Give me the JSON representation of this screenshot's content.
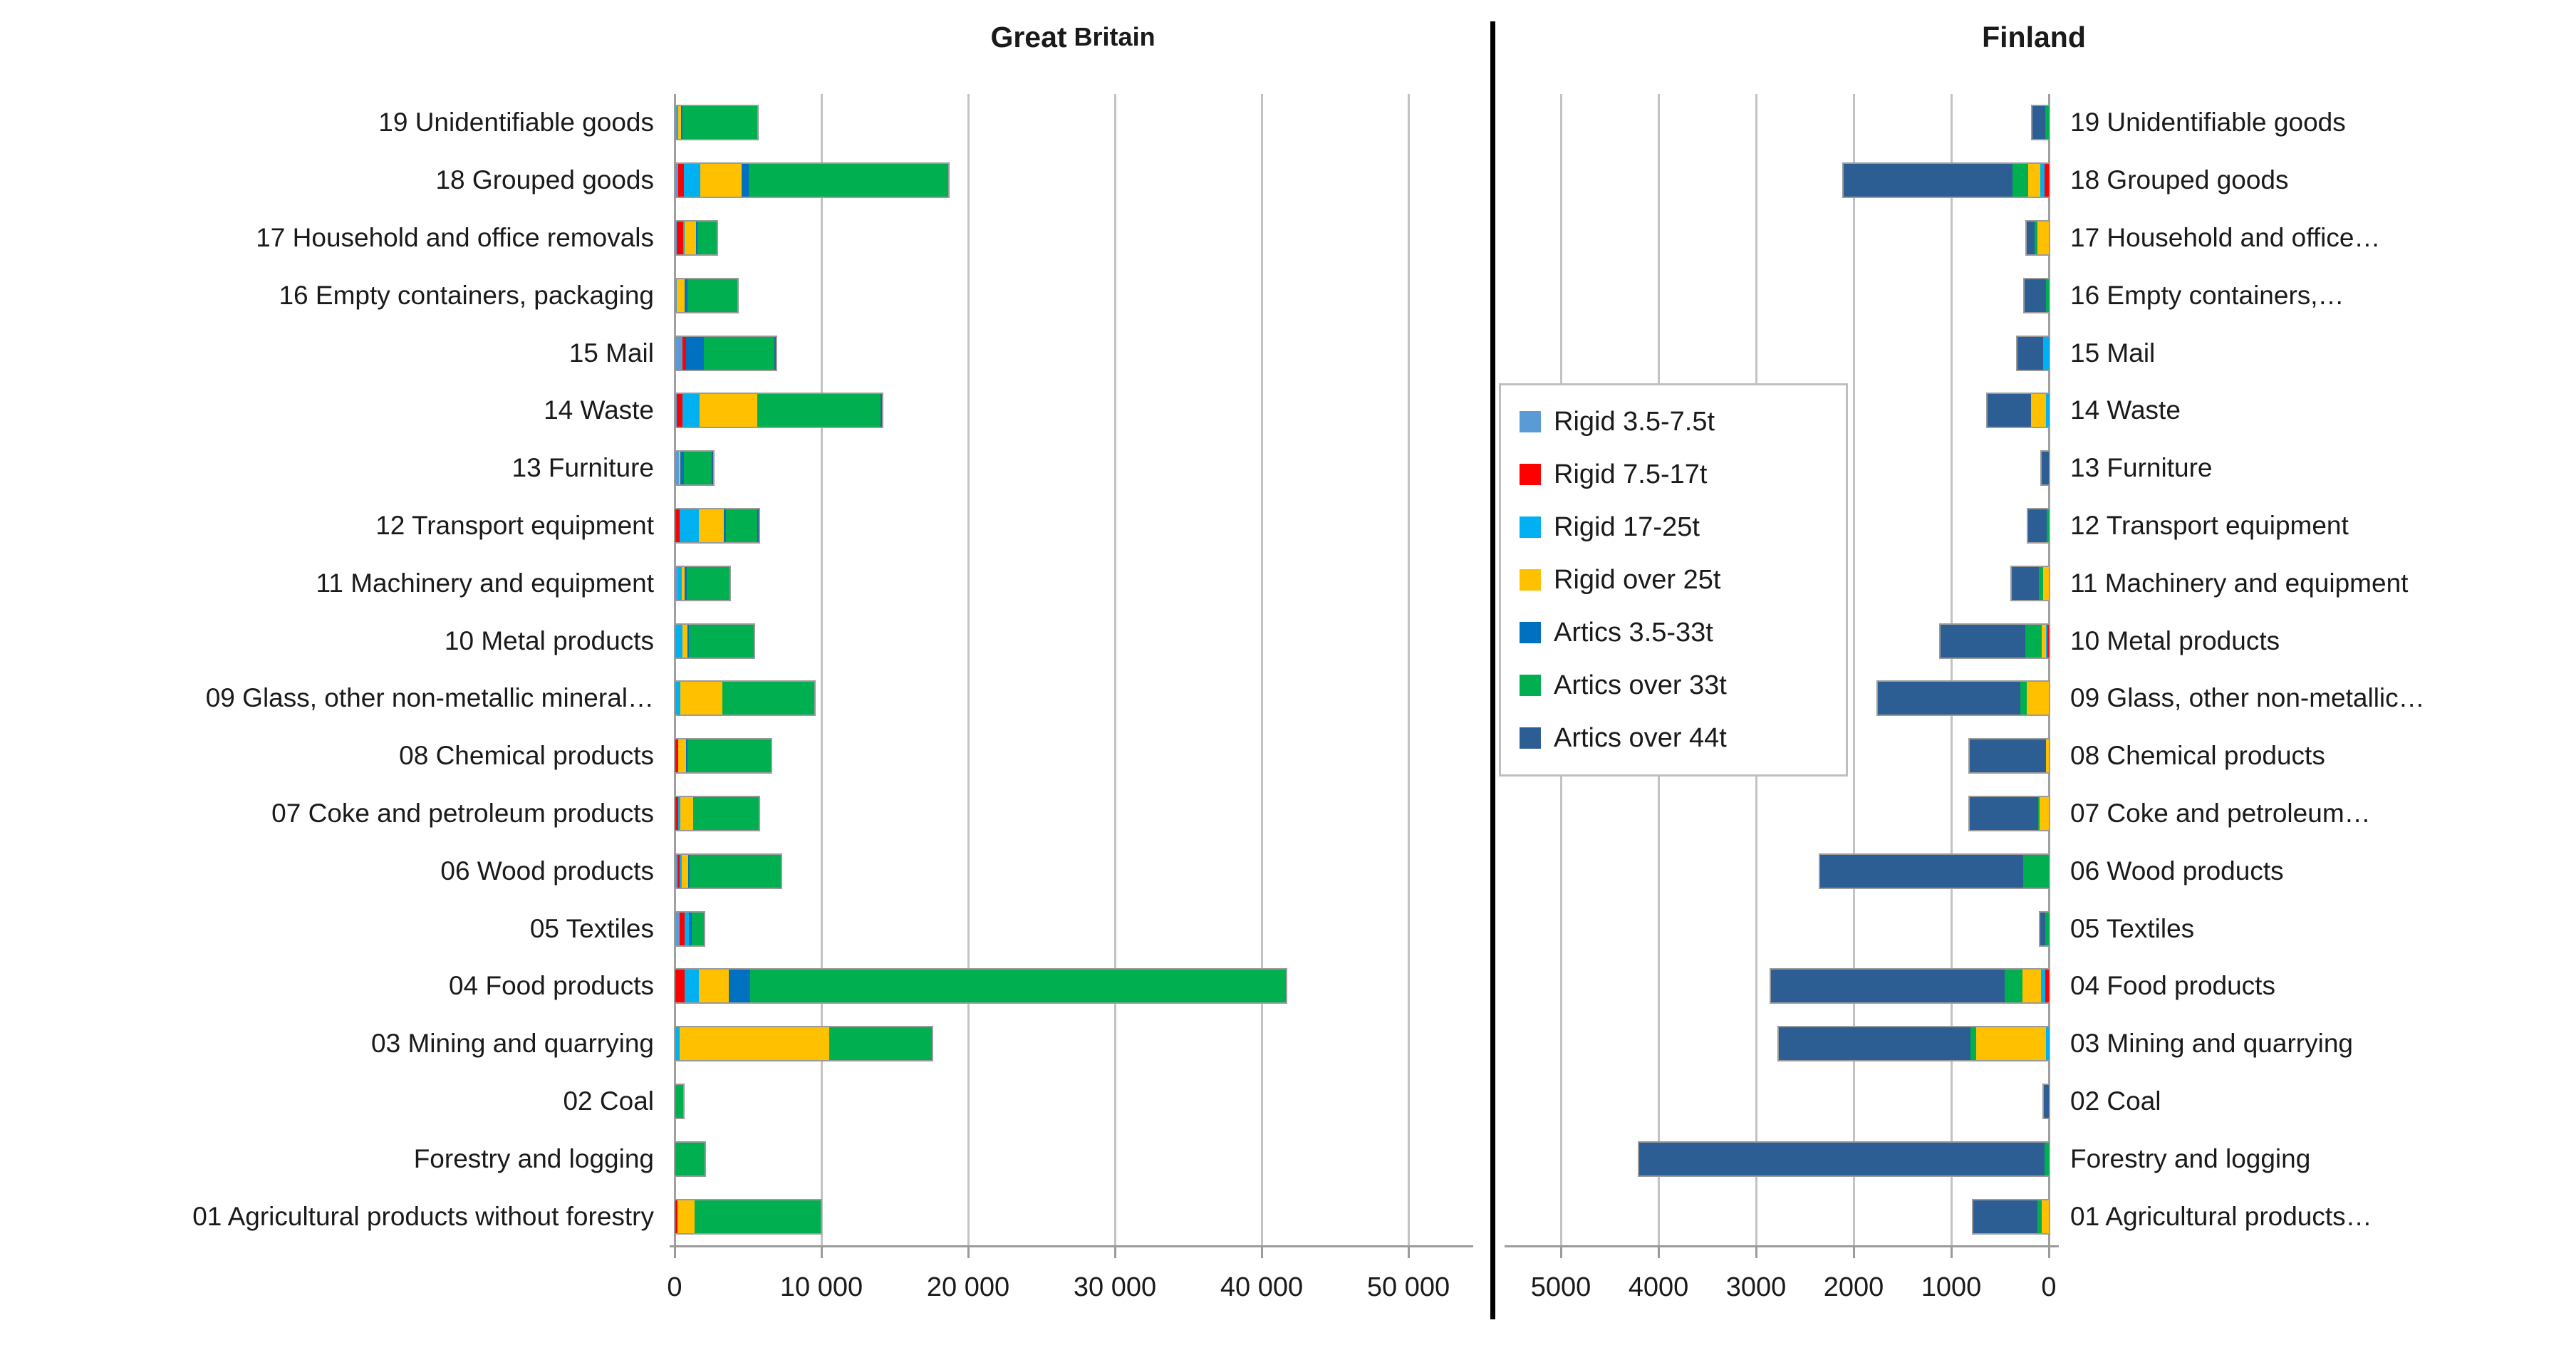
{
  "chart_data": {
    "type": "bar",
    "variant": "horizontal-stacked, two mirrored panels",
    "grid": true,
    "legend_position": "floating box left of Finland panel",
    "series": [
      {
        "name": "Rigid 3.5-7.5t",
        "color": "#5B9BD5"
      },
      {
        "name": "Rigid 7.5-17t",
        "color": "#FF0000"
      },
      {
        "name": "Rigid 17-25t",
        "color": "#00B0F0"
      },
      {
        "name": "Rigid over 25t",
        "color": "#FFC000"
      },
      {
        "name": "Artics 3.5-33t",
        "color": "#0070C0"
      },
      {
        "name": "Artics over 33t",
        "color": "#00B050"
      },
      {
        "name": "Artics over 44t",
        "color": "#2C5E94"
      }
    ],
    "panels": [
      {
        "id": "gb",
        "title_bold": "Great",
        "title_rest": "Britain",
        "direction": "left-to-right",
        "axis": {
          "min": 0,
          "max": 54300,
          "ticks": [
            0,
            10000,
            20000,
            30000,
            40000,
            50000
          ],
          "tick_labels": [
            "0",
            "10 000",
            "20 000",
            "30 000",
            "40 000",
            "50 000"
          ]
        },
        "categories": [
          "19 Unidentifiable goods",
          "18 Grouped goods",
          "17 Household and office removals",
          "16 Empty containers, packaging",
          "15 Mail",
          "14 Waste",
          "13 Furniture",
          "12 Transport equipment",
          "11 Machinery and equipment",
          "10 Metal products",
          "09 Glass, other non-metallic mineral…",
          "08 Chemical products",
          "07 Coke and petroleum products",
          "06 Wood products",
          "05 Textiles",
          "04 Food products",
          "03 Mining and quarrying",
          "02 Coal",
          "Forestry and logging",
          "01 Agricultural products without forestry"
        ],
        "values": [
          [
            80,
            0,
            60,
            200,
            60,
            5100,
            0
          ],
          [
            170,
            400,
            1130,
            2830,
            450,
            13600,
            0
          ],
          [
            60,
            420,
            120,
            750,
            120,
            1300,
            0
          ],
          [
            120,
            0,
            0,
            500,
            220,
            3400,
            0
          ],
          [
            500,
            250,
            0,
            0,
            1200,
            4800,
            80
          ],
          [
            60,
            400,
            1130,
            3960,
            0,
            8400,
            80
          ],
          [
            230,
            0,
            0,
            80,
            250,
            1900,
            60
          ],
          [
            0,
            300,
            1300,
            1700,
            170,
            2100,
            80
          ],
          [
            200,
            0,
            250,
            200,
            150,
            2900,
            0
          ],
          [
            0,
            0,
            500,
            330,
            80,
            4400,
            0
          ],
          [
            0,
            0,
            330,
            2860,
            0,
            6300,
            0
          ],
          [
            0,
            170,
            0,
            560,
            80,
            5700,
            0
          ],
          [
            0,
            200,
            150,
            850,
            0,
            4500,
            0
          ],
          [
            150,
            150,
            150,
            430,
            80,
            6200,
            0
          ],
          [
            280,
            370,
            280,
            0,
            200,
            800,
            0
          ],
          [
            0,
            620,
            960,
            2060,
            1480,
            36500,
            0
          ],
          [
            0,
            0,
            300,
            10200,
            0,
            7000,
            0
          ],
          [
            0,
            0,
            0,
            0,
            0,
            550,
            0
          ],
          [
            0,
            0,
            0,
            0,
            0,
            2000,
            0
          ],
          [
            0,
            150,
            0,
            1150,
            0,
            8600,
            0
          ]
        ]
      },
      {
        "id": "fi",
        "title_bold": "Finland",
        "title_rest": "",
        "direction": "right-to-left",
        "axis": {
          "min": 0,
          "max": 5620,
          "ticks": [
            5000,
            4000,
            3000,
            2000,
            1000,
            0
          ],
          "tick_labels": [
            "5000",
            "4000",
            "3000",
            "2000",
            "1000",
            "0"
          ]
        },
        "categories": [
          "19 Unidentifiable goods",
          "18 Grouped goods",
          "17 Household and office…",
          "16 Empty containers,…",
          "15 Mail",
          "14 Waste",
          "13 Furniture",
          "12 Transport equipment",
          "11 Machinery and equipment",
          "10 Metal products",
          "09 Glass, other non-metallic…",
          "08 Chemical products",
          "07 Coke and petroleum…",
          "06 Wood products",
          "05 Textiles",
          "04 Food products",
          "03 Mining and quarrying",
          "02 Coal",
          "Forestry and logging",
          "01 Agricultural products…"
        ],
        "values": [
          [
            0,
            0,
            0,
            0,
            0,
            40,
            130
          ],
          [
            0,
            45,
            45,
            120,
            0,
            160,
            1730
          ],
          [
            0,
            0,
            0,
            115,
            0,
            30,
            80
          ],
          [
            0,
            0,
            0,
            0,
            0,
            30,
            220
          ],
          [
            0,
            0,
            55,
            0,
            0,
            0,
            265
          ],
          [
            0,
            0,
            30,
            150,
            0,
            0,
            450
          ],
          [
            0,
            0,
            0,
            0,
            0,
            0,
            75
          ],
          [
            0,
            0,
            0,
            0,
            0,
            20,
            190
          ],
          [
            0,
            0,
            0,
            60,
            0,
            40,
            280
          ],
          [
            0,
            15,
            15,
            40,
            0,
            170,
            870
          ],
          [
            0,
            0,
            0,
            225,
            0,
            70,
            1455
          ],
          [
            0,
            0,
            0,
            30,
            0,
            0,
            780
          ],
          [
            0,
            0,
            0,
            95,
            0,
            15,
            700
          ],
          [
            0,
            0,
            0,
            0,
            0,
            265,
            2075
          ],
          [
            0,
            0,
            0,
            0,
            0,
            40,
            50
          ],
          [
            0,
            40,
            40,
            190,
            0,
            180,
            2400
          ],
          [
            0,
            0,
            30,
            715,
            0,
            55,
            1970
          ],
          [
            0,
            0,
            0,
            0,
            0,
            0,
            50
          ],
          [
            0,
            0,
            0,
            0,
            0,
            45,
            4150
          ],
          [
            0,
            0,
            0,
            75,
            0,
            40,
            660
          ]
        ]
      }
    ]
  }
}
